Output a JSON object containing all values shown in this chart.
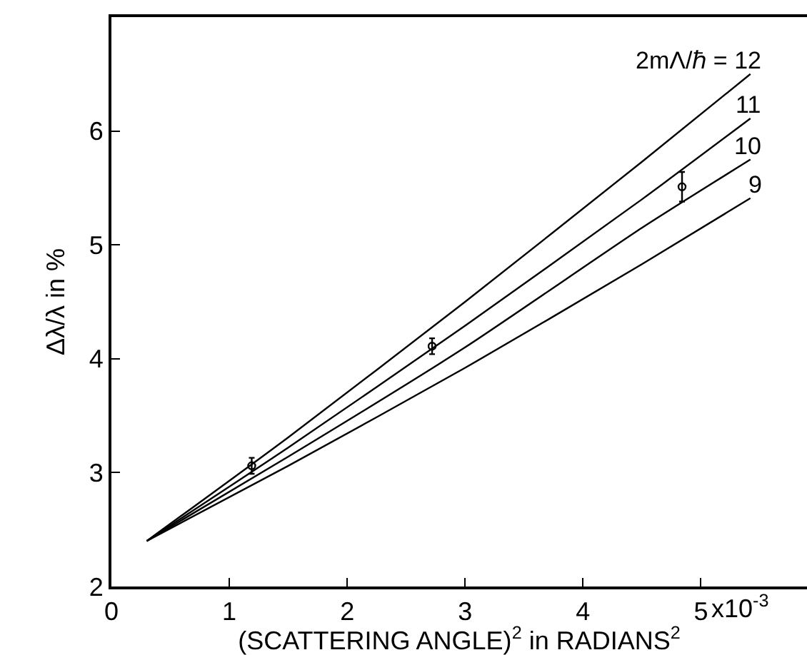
{
  "chart_data": {
    "type": "line",
    "xlabel": "(SCATTERING ANGLE)$^{2}$ in RADIANS$^{2}$",
    "ylabel": "Δλ/λ in %",
    "xlim": [
      0,
      5.9
    ],
    "ylim": [
      2,
      7
    ],
    "xticks": [
      0,
      1,
      2,
      3,
      4,
      5
    ],
    "annotations": [
      "x10$^{-3}$"
    ],
    "yticks": [
      2,
      3,
      4,
      5,
      6
    ],
    "grid": false,
    "legend": false,
    "marker": "none",
    "line_style": "solid",
    "series": [
      {
        "name": "2mΛ/ℏ = 12",
        "color": "#000000",
        "x": [
          0.3,
          1.5,
          3,
          4.5,
          5.42
        ],
        "values": [
          2.4,
          3.31,
          4.5,
          5.73,
          6.5
        ]
      },
      {
        "name": "11",
        "color": "#000000",
        "x": [
          0.3,
          1.5,
          3,
          4.5,
          5.42
        ],
        "values": [
          2.4,
          3.22,
          4.29,
          5.4,
          6.11
        ]
      },
      {
        "name": "10",
        "color": "#000000",
        "x": [
          0.3,
          1.5,
          3,
          4.5,
          5.42
        ],
        "values": [
          2.4,
          3.14,
          4.1,
          5.15,
          5.75
        ]
      },
      {
        "name": "9",
        "color": "#000000",
        "x": [
          0.3,
          1.5,
          3,
          4.5,
          5.42
        ],
        "values": [
          2.4,
          3.06,
          3.92,
          4.83,
          5.41
        ]
      },
      {
        "type": "scatter",
        "marker": "circle",
        "color": "#000000",
        "x": [
          1.19,
          2.72,
          4.84
        ],
        "values": [
          3.06,
          4.11,
          5.51
        ],
        "errors": [
          0.07,
          0.07,
          0.13
        ]
      }
    ]
  }
}
